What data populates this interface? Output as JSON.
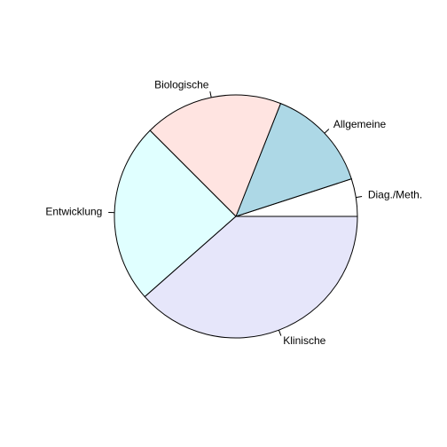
{
  "chart_data": {
    "type": "pie",
    "title": "",
    "direction": "counterclockwise",
    "start_angle_deg": 0,
    "slices": [
      {
        "label": "Diag./Meth.",
        "value": 5,
        "color": "#FFFFFF"
      },
      {
        "label": "Allgemeine",
        "value": 14,
        "color": "#ADD8E6"
      },
      {
        "label": "Biologische",
        "value": 18.5,
        "color": "#FFE4E1"
      },
      {
        "label": "Entwicklung",
        "value": 24,
        "color": "#E0FFFF"
      },
      {
        "label": "Klinische",
        "value": 38.5,
        "color": "#E6E6FA"
      }
    ]
  }
}
